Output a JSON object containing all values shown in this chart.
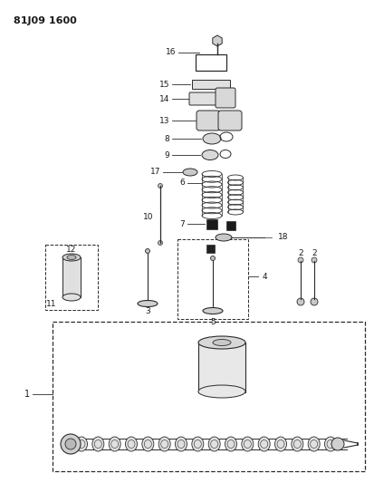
{
  "title": "81J09 1600",
  "bg_color": "#ffffff",
  "line_color": "#2a2a2a",
  "label_color": "#1a1a1a",
  "fig_width": 4.13,
  "fig_height": 5.33,
  "dpi": 100
}
